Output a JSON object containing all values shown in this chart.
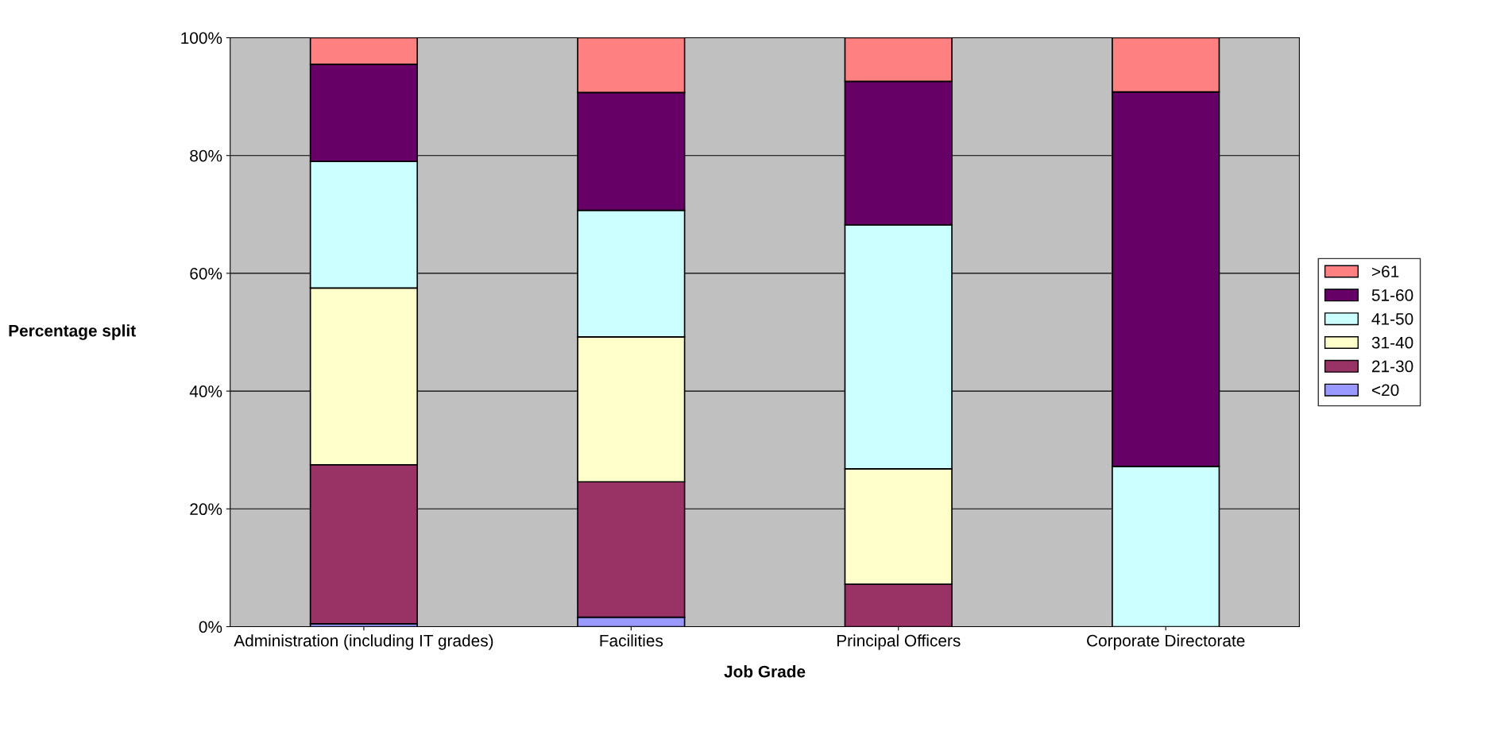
{
  "chart_data": {
    "type": "bar",
    "stacked": true,
    "xlabel": "Job Grade",
    "ylabel": "Percentage split",
    "categories": [
      "Administration (including IT grades)",
      "Facilities",
      "Principal Officers",
      "Corporate Directorate"
    ],
    "series": [
      {
        "name": "<20",
        "color": "#9999ff",
        "values": [
          0.5,
          1.6,
          0,
          0
        ]
      },
      {
        "name": "21-30",
        "color": "#993366",
        "values": [
          27,
          23,
          7.2,
          0
        ]
      },
      {
        "name": "31-40",
        "color": "#ffffcc",
        "values": [
          30,
          24.6,
          19.6,
          0
        ]
      },
      {
        "name": "41-50",
        "color": "#ccffff",
        "values": [
          21.5,
          21.5,
          41.4,
          27.2
        ]
      },
      {
        "name": "51-60",
        "color": "#660066",
        "values": [
          16.5,
          20,
          24.4,
          63.6
        ]
      },
      {
        "name": ">61",
        "color": "#ff8080",
        "values": [
          4.5,
          9.3,
          7.4,
          9.2
        ]
      }
    ],
    "ylim": [
      0,
      100
    ],
    "yticks": [
      {
        "value": 0,
        "label": "0%"
      },
      {
        "value": 20,
        "label": "20%"
      },
      {
        "value": 40,
        "label": "40%"
      },
      {
        "value": 60,
        "label": "60%"
      },
      {
        "value": 80,
        "label": "80%"
      },
      {
        "value": 100,
        "label": "100%"
      }
    ],
    "grid": "y",
    "legend": "right"
  }
}
